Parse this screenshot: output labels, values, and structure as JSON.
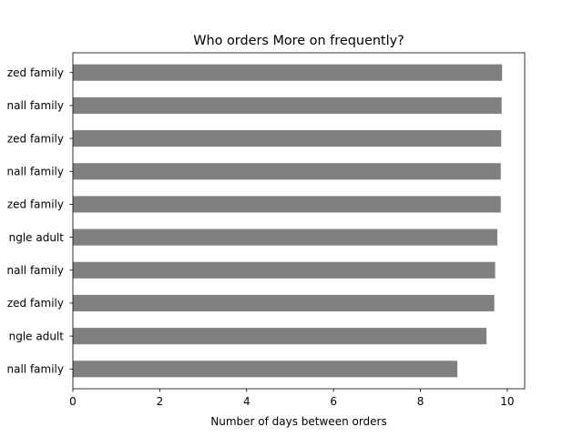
{
  "chart_data": {
    "type": "bar",
    "orientation": "horizontal",
    "title": "Who orders More on frequently?",
    "xlabel": "Number of days between orders",
    "ylabel": "",
    "xlim": [
      0,
      10.4
    ],
    "xticks": [
      0,
      2,
      4,
      6,
      8,
      10
    ],
    "categories": [
      "nall family",
      "ngle adult",
      "zed family",
      "nall family",
      "ngle adult",
      "zed family",
      "nall family",
      "zed family",
      "nall family",
      "zed family"
    ],
    "values": [
      8.85,
      9.52,
      9.7,
      9.72,
      9.77,
      9.85,
      9.85,
      9.86,
      9.87,
      9.88
    ],
    "bar_color": "#808080",
    "grid": false,
    "legend": false
  }
}
